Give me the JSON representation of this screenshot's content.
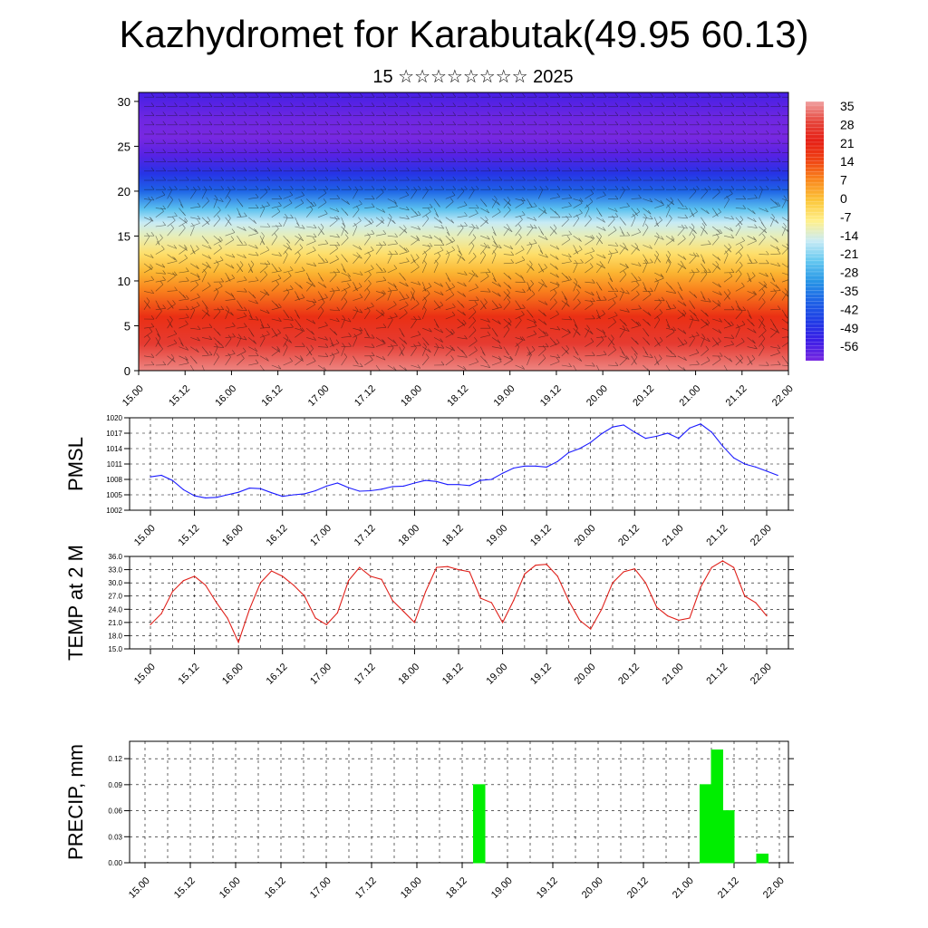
{
  "header": {
    "title": "Kazhydromet for Karabutak(49.95 60.13)",
    "subtitle": "15 ☆☆☆☆☆☆☆☆ 2025"
  },
  "colors": {
    "pmsl_line": "#1a1aff",
    "temp_line": "#e0201a",
    "precip_bar": "#00ee00",
    "colorbar_top": "#f0a0a0",
    "colorbar_bottom": "#7a22e6"
  },
  "time_labels": [
    "15.00",
    "15.12",
    "16.00",
    "16.12",
    "17.00",
    "17.12",
    "18.00",
    "18.12",
    "19.00",
    "19.12",
    "20.00",
    "20.12",
    "21.00",
    "21.12",
    "22.00"
  ],
  "chart_data": [
    {
      "type": "heatmap",
      "name": "cross-section",
      "x_labels": [
        "15.00",
        "15.12",
        "16.00",
        "16.12",
        "17.00",
        "17.12",
        "18.00",
        "18.12",
        "19.00",
        "19.12",
        "20.00",
        "20.12",
        "21.00",
        "21.12",
        "22.00"
      ],
      "y_ticks": [
        0,
        5,
        10,
        15,
        20,
        25,
        30
      ],
      "ylim": [
        0,
        31
      ],
      "colorbar_levels": [
        "35",
        "28",
        "21",
        "14",
        "7",
        "0",
        "-7",
        "-14",
        "-21",
        "-28",
        "-35",
        "-42",
        "-49",
        "-56"
      ],
      "profile": [
        {
          "level": 0,
          "value": 33
        },
        {
          "level": 3,
          "value": 26
        },
        {
          "level": 6,
          "value": 18
        },
        {
          "level": 9,
          "value": 8
        },
        {
          "level": 11,
          "value": 2
        },
        {
          "level": 13,
          "value": -4
        },
        {
          "level": 15,
          "value": -10
        },
        {
          "level": 16.5,
          "value": -14
        },
        {
          "level": 18,
          "value": -22
        },
        {
          "level": 20,
          "value": -35
        },
        {
          "level": 22,
          "value": -44
        },
        {
          "level": 24,
          "value": -52
        },
        {
          "level": 26,
          "value": -58
        },
        {
          "level": 28,
          "value": -55
        },
        {
          "level": 31,
          "value": -50
        }
      ]
    },
    {
      "type": "line",
      "name": "PMSL",
      "ylabel": "PMSL",
      "ylim": [
        1002,
        1020
      ],
      "y_ticks": [
        "1002",
        "1005",
        "1008",
        "1011",
        "1014",
        "1017",
        "1020"
      ],
      "x_step_hours": 3,
      "x_start_hours": 0,
      "values": [
        1008.5,
        1008.8,
        1007.8,
        1006.0,
        1004.8,
        1004.4,
        1004.5,
        1005.0,
        1005.5,
        1006.3,
        1006.2,
        1005.4,
        1004.7,
        1005.0,
        1005.2,
        1005.8,
        1006.7,
        1007.3,
        1006.4,
        1005.7,
        1005.8,
        1006.1,
        1006.6,
        1006.7,
        1007.3,
        1007.8,
        1007.6,
        1007.0,
        1007.0,
        1006.8,
        1007.8,
        1008.0,
        1009.2,
        1010.2,
        1010.6,
        1010.6,
        1010.4,
        1011.5,
        1013.2,
        1014.0,
        1015.2,
        1016.9,
        1018.2,
        1018.6,
        1017.2,
        1016.0,
        1016.4,
        1017.0,
        1016.0,
        1018.0,
        1018.8,
        1017.2,
        1014.5,
        1012.2,
        1011.0,
        1010.4,
        1009.6,
        1008.8
      ]
    },
    {
      "type": "line",
      "name": "TEMP at 2 M",
      "ylabel": "TEMP at 2 M",
      "ylim": [
        15,
        36
      ],
      "y_ticks": [
        "15.0",
        "18.0",
        "21.0",
        "24.0",
        "27.0",
        "30.0",
        "33.0",
        "36.0"
      ],
      "x_step_hours": 3,
      "x_start_hours": 0,
      "values": [
        20.5,
        23.0,
        28.0,
        30.5,
        31.5,
        29.5,
        25.5,
        22.0,
        16.5,
        24.0,
        30.0,
        32.7,
        31.5,
        29.5,
        27.0,
        22.0,
        20.5,
        23.2,
        30.5,
        33.5,
        31.5,
        30.8,
        26.0,
        23.5,
        21.0,
        28.0,
        33.5,
        33.7,
        33.0,
        32.5,
        26.5,
        25.5,
        21.0,
        26.0,
        32.0,
        34.0,
        34.2,
        31.5,
        26.0,
        21.5,
        19.5,
        24.0,
        30.0,
        32.5,
        33.2,
        30.0,
        24.5,
        22.5,
        21.5,
        22.0,
        29.0,
        33.5,
        35.0,
        33.5,
        27.0,
        25.5,
        22.5
      ]
    },
    {
      "type": "bar",
      "name": "PRECIP, mm",
      "ylabel": "PRECIP, mm",
      "ylim": [
        0,
        0.14
      ],
      "y_ticks": [
        "0.00",
        "0.03",
        "0.06",
        "0.09",
        "0.12"
      ],
      "bar_width_hours": 3,
      "bars": [
        {
          "start_hours": 87,
          "value": 0.09
        },
        {
          "start_hours": 147,
          "value": 0.09
        },
        {
          "start_hours": 150,
          "value": 0.13
        },
        {
          "start_hours": 153,
          "value": 0.06
        },
        {
          "start_hours": 162,
          "value": 0.01
        }
      ]
    }
  ]
}
